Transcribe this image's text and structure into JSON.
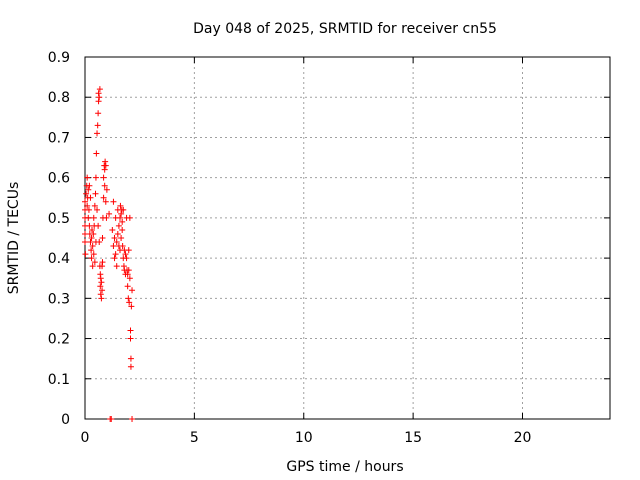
{
  "chart_data": {
    "type": "scatter",
    "title": "Day 048 of 2025, SRMTID for receiver cn55",
    "xlabel": "GPS time / hours",
    "ylabel": "SRMTID / TECUs",
    "xlim": [
      0,
      24
    ],
    "ylim": [
      0,
      0.9
    ],
    "xticks": [
      0,
      5,
      10,
      15,
      20
    ],
    "yticks": [
      0,
      0.1,
      0.2,
      0.3,
      0.4,
      0.5,
      0.6,
      0.7,
      0.8,
      0.9
    ],
    "xtick_labels": [
      "0",
      "5",
      "10",
      "15",
      "20"
    ],
    "ytick_labels": [
      "0",
      "0.1",
      "0.2",
      "0.3",
      "0.4",
      "0.5",
      "0.6",
      "0.7",
      "0.8",
      "0.9"
    ],
    "grid": true,
    "marker": "+",
    "color": "#ff0000",
    "series": [
      {
        "name": "SRMTID",
        "points": [
          [
            0.0,
            0.44
          ],
          [
            0.0,
            0.46
          ],
          [
            0.0,
            0.48
          ],
          [
            0.0,
            0.5
          ],
          [
            0.0,
            0.52
          ],
          [
            0.0,
            0.54
          ],
          [
            0.02,
            0.41
          ],
          [
            0.05,
            0.56
          ],
          [
            0.08,
            0.58
          ],
          [
            0.1,
            0.6
          ],
          [
            0.1,
            0.53
          ],
          [
            0.12,
            0.55
          ],
          [
            0.15,
            0.57
          ],
          [
            0.15,
            0.5
          ],
          [
            0.18,
            0.52
          ],
          [
            0.2,
            0.48
          ],
          [
            0.2,
            0.58
          ],
          [
            0.22,
            0.46
          ],
          [
            0.25,
            0.44
          ],
          [
            0.25,
            0.55
          ],
          [
            0.28,
            0.42
          ],
          [
            0.3,
            0.45
          ],
          [
            0.3,
            0.4
          ],
          [
            0.32,
            0.47
          ],
          [
            0.35,
            0.43
          ],
          [
            0.35,
            0.38
          ],
          [
            0.38,
            0.46
          ],
          [
            0.4,
            0.41
          ],
          [
            0.4,
            0.5
          ],
          [
            0.42,
            0.48
          ],
          [
            0.45,
            0.53
          ],
          [
            0.45,
            0.39
          ],
          [
            0.48,
            0.56
          ],
          [
            0.5,
            0.6
          ],
          [
            0.5,
            0.44
          ],
          [
            0.52,
            0.66
          ],
          [
            0.55,
            0.71
          ],
          [
            0.55,
            0.52
          ],
          [
            0.58,
            0.73
          ],
          [
            0.6,
            0.76
          ],
          [
            0.6,
            0.48
          ],
          [
            0.62,
            0.79
          ],
          [
            0.62,
            0.81
          ],
          [
            0.65,
            0.8
          ],
          [
            0.65,
            0.44
          ],
          [
            0.68,
            0.38
          ],
          [
            0.68,
            0.82
          ],
          [
            0.7,
            0.36
          ],
          [
            0.7,
            0.33
          ],
          [
            0.72,
            0.35
          ],
          [
            0.72,
            0.31
          ],
          [
            0.75,
            0.3
          ],
          [
            0.75,
            0.34
          ],
          [
            0.78,
            0.32
          ],
          [
            0.78,
            0.38
          ],
          [
            0.8,
            0.39
          ],
          [
            0.8,
            0.45
          ],
          [
            0.82,
            0.5
          ],
          [
            0.85,
            0.55
          ],
          [
            0.85,
            0.6
          ],
          [
            0.88,
            0.63
          ],
          [
            0.9,
            0.62
          ],
          [
            0.9,
            0.58
          ],
          [
            0.92,
            0.64
          ],
          [
            0.95,
            0.63
          ],
          [
            0.95,
            0.54
          ],
          [
            0.98,
            0.5
          ],
          [
            1.0,
            0.57
          ],
          [
            1.1,
            0.51
          ],
          [
            1.15,
            0.0
          ],
          [
            1.2,
            0.0
          ],
          [
            1.25,
            0.47
          ],
          [
            1.3,
            0.43
          ],
          [
            1.3,
            0.54
          ],
          [
            1.35,
            0.45
          ],
          [
            1.35,
            0.4
          ],
          [
            1.4,
            0.41
          ],
          [
            1.4,
            0.5
          ],
          [
            1.45,
            0.44
          ],
          [
            1.45,
            0.38
          ],
          [
            1.5,
            0.46
          ],
          [
            1.5,
            0.52
          ],
          [
            1.55,
            0.43
          ],
          [
            1.55,
            0.48
          ],
          [
            1.6,
            0.5
          ],
          [
            1.6,
            0.42
          ],
          [
            1.62,
            0.53
          ],
          [
            1.65,
            0.51
          ],
          [
            1.65,
            0.45
          ],
          [
            1.68,
            0.52
          ],
          [
            1.7,
            0.49
          ],
          [
            1.7,
            0.47
          ],
          [
            1.72,
            0.43
          ],
          [
            1.75,
            0.52
          ],
          [
            1.75,
            0.4
          ],
          [
            1.78,
            0.38
          ],
          [
            1.8,
            0.37
          ],
          [
            1.8,
            0.42
          ],
          [
            1.85,
            0.36
          ],
          [
            1.85,
            0.41
          ],
          [
            1.9,
            0.5
          ],
          [
            1.9,
            0.4
          ],
          [
            1.92,
            0.37
          ],
          [
            1.95,
            0.36
          ],
          [
            1.95,
            0.33
          ],
          [
            1.98,
            0.3
          ],
          [
            2.0,
            0.37
          ],
          [
            2.0,
            0.42
          ],
          [
            2.02,
            0.29
          ],
          [
            2.05,
            0.5
          ],
          [
            2.05,
            0.35
          ],
          [
            2.08,
            0.22
          ],
          [
            2.08,
            0.2
          ],
          [
            2.1,
            0.15
          ],
          [
            2.1,
            0.13
          ],
          [
            2.12,
            0.28
          ],
          [
            2.15,
            0.32
          ],
          [
            2.15,
            0.0
          ]
        ]
      }
    ]
  }
}
